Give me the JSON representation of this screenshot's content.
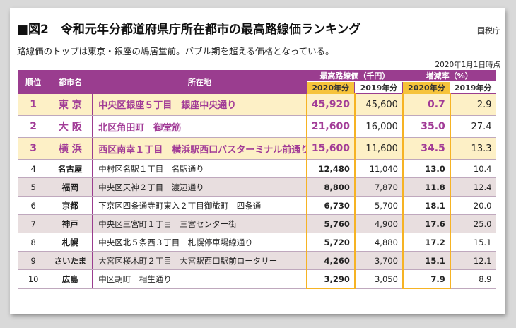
{
  "title": "■図2　令和元年分都道府県庁所在都市の最高路線価ランキング",
  "source": "国税庁",
  "subtitle": "路線価のトップは東京・銀座の鳩居堂前。バブル期を超える価格となっている。",
  "date_note": "2020年1月1日時点",
  "headers": {
    "rank": "順位",
    "city": "都市名",
    "address": "所在地",
    "price_group": "最高路線価（千円）",
    "rate_group": "増減率（%）",
    "y2020": "2020年分",
    "y2019": "2019年分"
  },
  "rows": [
    {
      "rank": "1",
      "city": "東 京",
      "address": "中央区銀座５丁目　銀座中央通り",
      "p2020": "45,920",
      "p2019": "45,600",
      "r2020": "0.7",
      "r2019": "2.9"
    },
    {
      "rank": "2",
      "city": "大 阪",
      "address": "北区角田町　御堂筋",
      "p2020": "21,600",
      "p2019": "16,000",
      "r2020": "35.0",
      "r2019": "27.4"
    },
    {
      "rank": "3",
      "city": "横 浜",
      "address": "西区南幸１丁目　横浜駅西口バスターミナル前通り",
      "p2020": "15,600",
      "p2019": "11,600",
      "r2020": "34.5",
      "r2019": "13.3"
    },
    {
      "rank": "4",
      "city": "名古屋",
      "address": "中村区名駅１丁目　名駅通り",
      "p2020": "12,480",
      "p2019": "11,040",
      "r2020": "13.0",
      "r2019": "10.4"
    },
    {
      "rank": "5",
      "city": "福岡",
      "address": "中央区天神２丁目　渡辺通り",
      "p2020": "8,800",
      "p2019": "7,870",
      "r2020": "11.8",
      "r2019": "12.4"
    },
    {
      "rank": "6",
      "city": "京都",
      "address": "下京区四条通寺町東入２丁目御旅町　四条通",
      "p2020": "6,730",
      "p2019": "5,700",
      "r2020": "18.1",
      "r2019": "20.0"
    },
    {
      "rank": "7",
      "city": "神戸",
      "address": "中央区三宮町１丁目　三宮センター街",
      "p2020": "5,760",
      "p2019": "4,900",
      "r2020": "17.6",
      "r2019": "25.0"
    },
    {
      "rank": "8",
      "city": "札幌",
      "address": "中央区北５条西３丁目　札幌停車場線通り",
      "p2020": "5,720",
      "p2019": "4,880",
      "r2020": "17.2",
      "r2019": "15.1"
    },
    {
      "rank": "9",
      "city": "さいたま",
      "address": "大宮区桜木町２丁目　大宮駅西口駅前ロータリー",
      "p2020": "4,260",
      "p2019": "3,700",
      "r2020": "15.1",
      "r2019": "12.1"
    },
    {
      "rank": "10",
      "city": "広島",
      "address": "中区胡町　相生通り",
      "p2020": "3,290",
      "p2019": "3,050",
      "r2020": "7.9",
      "r2019": "8.9"
    }
  ],
  "colors": {
    "accent": "#9a3d8f",
    "highlight": "#f6c33b",
    "top_rows_bg": "#fdf0c6",
    "alt_row_bg": "#e8dedf"
  }
}
